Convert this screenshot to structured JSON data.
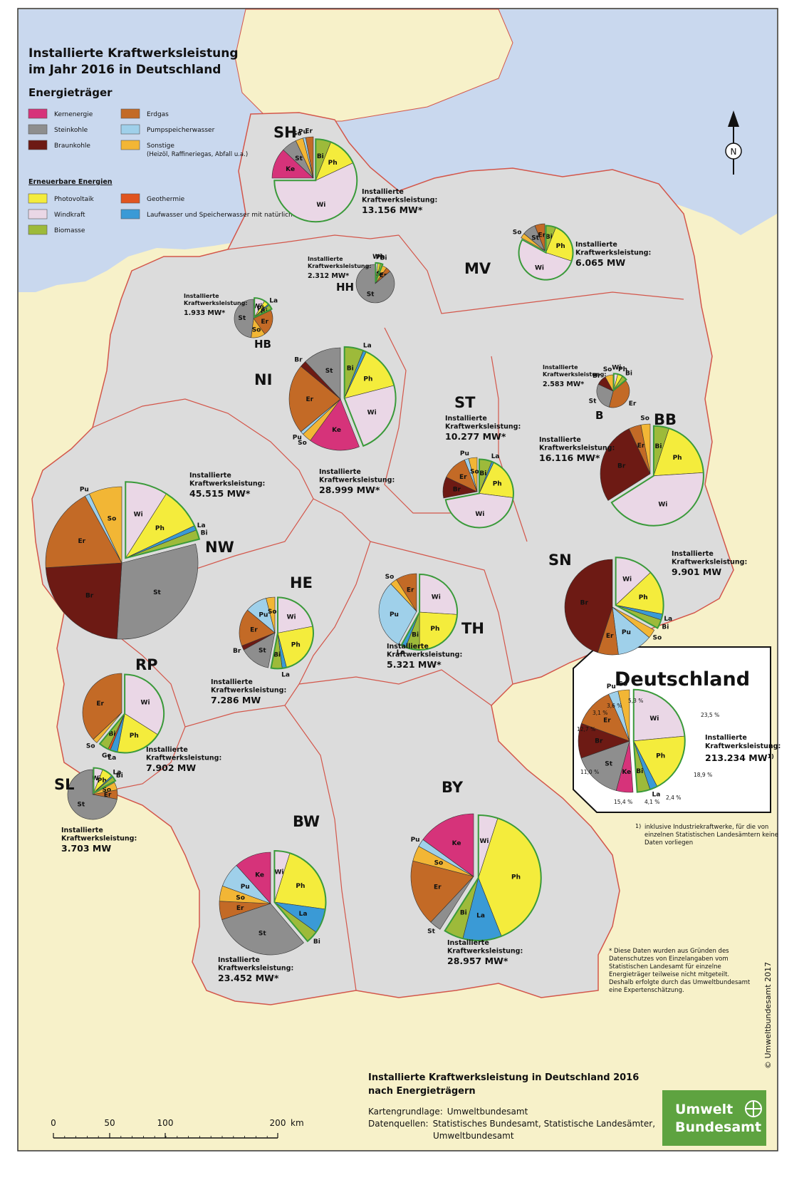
{
  "title": "Installierte Kraftwerksleistung im Jahr 2016 in Deutschland",
  "legend": {
    "heading": "Energieträger",
    "conventional": [
      {
        "abbr": "Ke",
        "name": "Kernenergie",
        "color": "#d6337a"
      },
      {
        "abbr": "St",
        "name": "Steinkohle",
        "color": "#8e8e8e"
      },
      {
        "abbr": "Br",
        "name": "Braunkohle",
        "color": "#6d1a14"
      },
      {
        "abbr": "Er",
        "name": "Erdgas",
        "color": "#c36a26"
      },
      {
        "abbr": "Pu",
        "name": "Pumpspeicherwasser",
        "color": "#9fd0ea"
      },
      {
        "abbr": "So",
        "name": "Sonstige",
        "color": "#f2b635",
        "note": "(Heizöl, Raffineriegas, Abfall u.a.)"
      }
    ],
    "renewable_heading": "Erneuerbare Energien",
    "renewable": [
      {
        "abbr": "Ph",
        "name": "Photovoltaik",
        "color": "#f4ec3c"
      },
      {
        "abbr": "Wi",
        "name": "Windkraft",
        "color": "#ead7e6"
      },
      {
        "abbr": "Bi",
        "name": "Biomasse",
        "color": "#9dba3a"
      },
      {
        "abbr": "Ge",
        "name": "Geothermie",
        "color": "#e0541f"
      },
      {
        "abbr": "La",
        "name": "Laufwasser und Speicherwasser mit natürlichem Zufluß",
        "color": "#3a9ad6"
      }
    ]
  },
  "capacity_label": "Installierte Kraftwerksleistung:",
  "states": [
    {
      "code": "SH",
      "capacity": "13.156 MW*",
      "shares": {
        "Ke": 12,
        "St": 6,
        "So": 3,
        "Pu": 1,
        "Er": 3,
        "Bi": 6,
        "Ph": 12,
        "Wi": 57
      }
    },
    {
      "code": "MV",
      "capacity": "6.065 MW",
      "shares": {
        "So": 3,
        "St": 8,
        "Er": 6,
        "Bi": 6,
        "Ph": 24,
        "Wi": 53
      }
    },
    {
      "code": "HH",
      "capacity": "2.312 MW*",
      "shares": {
        "So": 4,
        "Er": 4,
        "Wi": 2,
        "Ph": 2,
        "Bi": 2,
        "St": 86
      }
    },
    {
      "code": "HB",
      "capacity": "1.933 MW*",
      "shares": {
        "Er": 22,
        "So": 12,
        "St": 48,
        "Wi": 9,
        "Ph": 4,
        "La": 1,
        "Bi": 4
      }
    },
    {
      "code": "NI",
      "capacity": "28.999 MW*",
      "shares": {
        "Ke": 16,
        "So": 3,
        "Pu": 1,
        "Er": 22,
        "Br": 2,
        "St": 12,
        "Bi": 6,
        "La": 1,
        "Ph": 14,
        "Wi": 23
      }
    },
    {
      "code": "B",
      "capacity": "2.583 MW*",
      "shares": {
        "Er": 40,
        "St": 28,
        "Br": 10,
        "So": 8,
        "Wi": 4,
        "Ph": 5,
        "Bi": 5
      }
    },
    {
      "code": "ST",
      "capacity": "10.277 MW*",
      "shares": {
        "Br": 10,
        "Er": 12,
        "Pu": 2,
        "So": 4,
        "Bi": 6,
        "La": 1,
        "Ph": 20,
        "Wi": 45
      }
    },
    {
      "code": "BB",
      "capacity": "16.116 MW*",
      "shares": {
        "Br": 27,
        "Er": 4,
        "So": 3,
        "Bi": 5,
        "Ph": 19,
        "Wi": 42
      }
    },
    {
      "code": "NW",
      "capacity": "45.515 MW*",
      "shares": {
        "Wi": 9,
        "Ph": 9,
        "La": 1,
        "Bi": 2,
        "St": 30,
        "Br": 23,
        "Er": 18,
        "Pu": 1,
        "So": 7
      }
    },
    {
      "code": "HE",
      "capacity": "7.286 MW",
      "shares": {
        "Wi": 22,
        "Ph": 24,
        "La": 2,
        "Bi": 5,
        "St": 14,
        "Br": 2,
        "Er": 17,
        "Pu": 10,
        "So": 4
      }
    },
    {
      "code": "TH",
      "capacity": "5.321 MW*",
      "shares": {
        "Wi": 26,
        "Ph": 24,
        "Bi": 6,
        "La": 2,
        "Pu": 30,
        "So": 3,
        "Er": 9
      }
    },
    {
      "code": "SN",
      "capacity": "9.901 MW",
      "shares": {
        "Wi": 13,
        "Ph": 15,
        "La": 2,
        "Bi": 3,
        "So": 3,
        "Pu": 12,
        "Er": 7,
        "Br": 45
      }
    },
    {
      "code": "RP",
      "capacity": "7.902 MW",
      "shares": {
        "Wi": 34,
        "Ph": 19,
        "La": 3,
        "Ge": 1,
        "Bi": 4,
        "So": 2,
        "Er": 37
      }
    },
    {
      "code": "SL",
      "capacity": "3.703 MW",
      "shares": {
        "Wi": 6,
        "Ph": 7,
        "La": 1,
        "Bi": 3,
        "So": 5,
        "Er": 6,
        "St": 72
      }
    },
    {
      "code": "BW",
      "capacity": "23.452 MW*",
      "shares": {
        "Wi": 5,
        "Ph": 23,
        "La": 8,
        "Bi": 4,
        "St": 32,
        "Er": 6,
        "So": 5,
        "Pu": 8,
        "Ke": 12
      }
    },
    {
      "code": "BY",
      "capacity": "28.957 MW*",
      "shares": {
        "Wi": 5,
        "Ph": 39,
        "La": 10,
        "Bi": 5,
        "St": 3,
        "Er": 17,
        "So": 4,
        "Pu": 2,
        "Ke": 15
      }
    }
  ],
  "germany": {
    "title": "Deutschland",
    "capacity": "213.234 MW",
    "capacity_note": "1)",
    "percent_labels": [
      "5,3 %",
      "23,5 %",
      "18,9 %",
      "2,4 %",
      "4,1 %",
      "15,4 %",
      "11,0 %",
      "12,7 %",
      "3,1 %",
      "3,6 %"
    ],
    "shares": {
      "Ke": 5.3,
      "Wi": 23.5,
      "Ph": 18.9,
      "La": 2.4,
      "Bi": 4.1,
      "St": 15.4,
      "Br": 11.0,
      "Er": 12.7,
      "Pu": 3.1,
      "So": 3.6
    },
    "footnote": "inklusive Industriekraftwerke, für die von einzelnen Statistischen Landesämtern keine Daten vorliegen",
    "footnote_mark": "1)"
  },
  "asterisk_note": "* Diese Daten wurden aus Gründen des Datenschutzes von Einzelangaben vom Statistischen Landesamt für einzelne Energieträger teilweise nicht mitgeteilt. Deshalb erfolgte durch das Umweltbundesamt eine Expertenschätzung.",
  "bottom_title": "Installierte Kraftwerksleistung in Deutschland 2016 nach Energieträgern",
  "sources": {
    "base_label": "Kartengrundlage:",
    "base_value": "Umweltbundesamt",
    "data_label": "Datenquellen:",
    "data_value_1": "Statistisches Bundesamt, Statistische Landesämter,",
    "data_value_2": "Umweltbundesamt"
  },
  "scale": {
    "ticks": [
      "0",
      "50",
      "100",
      "200"
    ],
    "unit": "km"
  },
  "north": "N",
  "copyright": "© Umweltbundesamt 2017",
  "logo": {
    "line1": "Umwelt",
    "line2": "Bundesamt"
  }
}
